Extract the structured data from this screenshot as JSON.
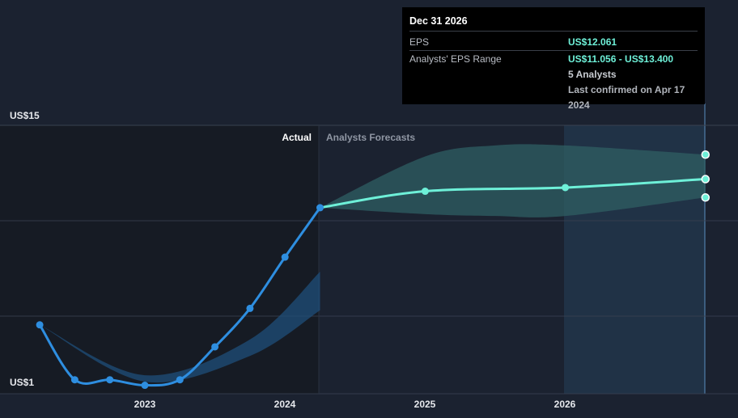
{
  "chart_data": {
    "type": "line",
    "y_labels": {
      "top": "US$15",
      "bottom": "US$1"
    },
    "ylim": [
      1,
      15
    ],
    "x_ticks": [
      "2023",
      "2024",
      "2025",
      "2026"
    ],
    "divider_label_left": "Actual",
    "divider_label_right": "Analysts Forecasts",
    "series": [
      {
        "kind": "actual",
        "points": [
          {
            "x": 2022.25,
            "y": 4.1
          },
          {
            "x": 2022.5,
            "y": 1.1
          },
          {
            "x": 2022.75,
            "y": 1.1
          },
          {
            "x": 2023.0,
            "y": 0.8
          },
          {
            "x": 2023.25,
            "y": 1.1
          },
          {
            "x": 2023.5,
            "y": 2.9
          },
          {
            "x": 2023.75,
            "y": 5.0
          },
          {
            "x": 2024.0,
            "y": 7.8
          },
          {
            "x": 2024.25,
            "y": 10.5
          }
        ]
      },
      {
        "kind": "forecast",
        "points": [
          {
            "x": 2024.25,
            "y": 10.5
          },
          {
            "x": 2025.0,
            "y": 11.4
          },
          {
            "x": 2026.0,
            "y": 11.6
          },
          {
            "x": 2027.0,
            "y": 12.061
          }
        ]
      }
    ],
    "forecast_range": {
      "x": [
        2024.25,
        2025.0,
        2025.5,
        2026.0,
        2027.0
      ],
      "low": [
        10.5,
        10.15,
        10.05,
        10.05,
        11.056
      ],
      "high": [
        10.5,
        13.3,
        13.9,
        13.9,
        13.4
      ]
    },
    "colors": {
      "background": "#1b2230",
      "actual_region": "#161b24",
      "actual_line": "#2e8ee0",
      "forecast_line": "#6ef0d8",
      "forecast_band": "#2f5f63",
      "actual_band": "#1f4f7a",
      "highlight_band": "#24405a",
      "grid": "#3a4252",
      "label_actual": "#ffffff",
      "label_forecast": "#8f96a3"
    }
  },
  "tooltip": {
    "date": "Dec 31 2026",
    "eps_label": "EPS",
    "eps_value": "US$12.061",
    "range_label": "Analysts' EPS Range",
    "range_value": "US$11.056 - US$13.400",
    "analysts": "5 Analysts",
    "confirmed": "Last confirmed on Apr 17 2024"
  }
}
